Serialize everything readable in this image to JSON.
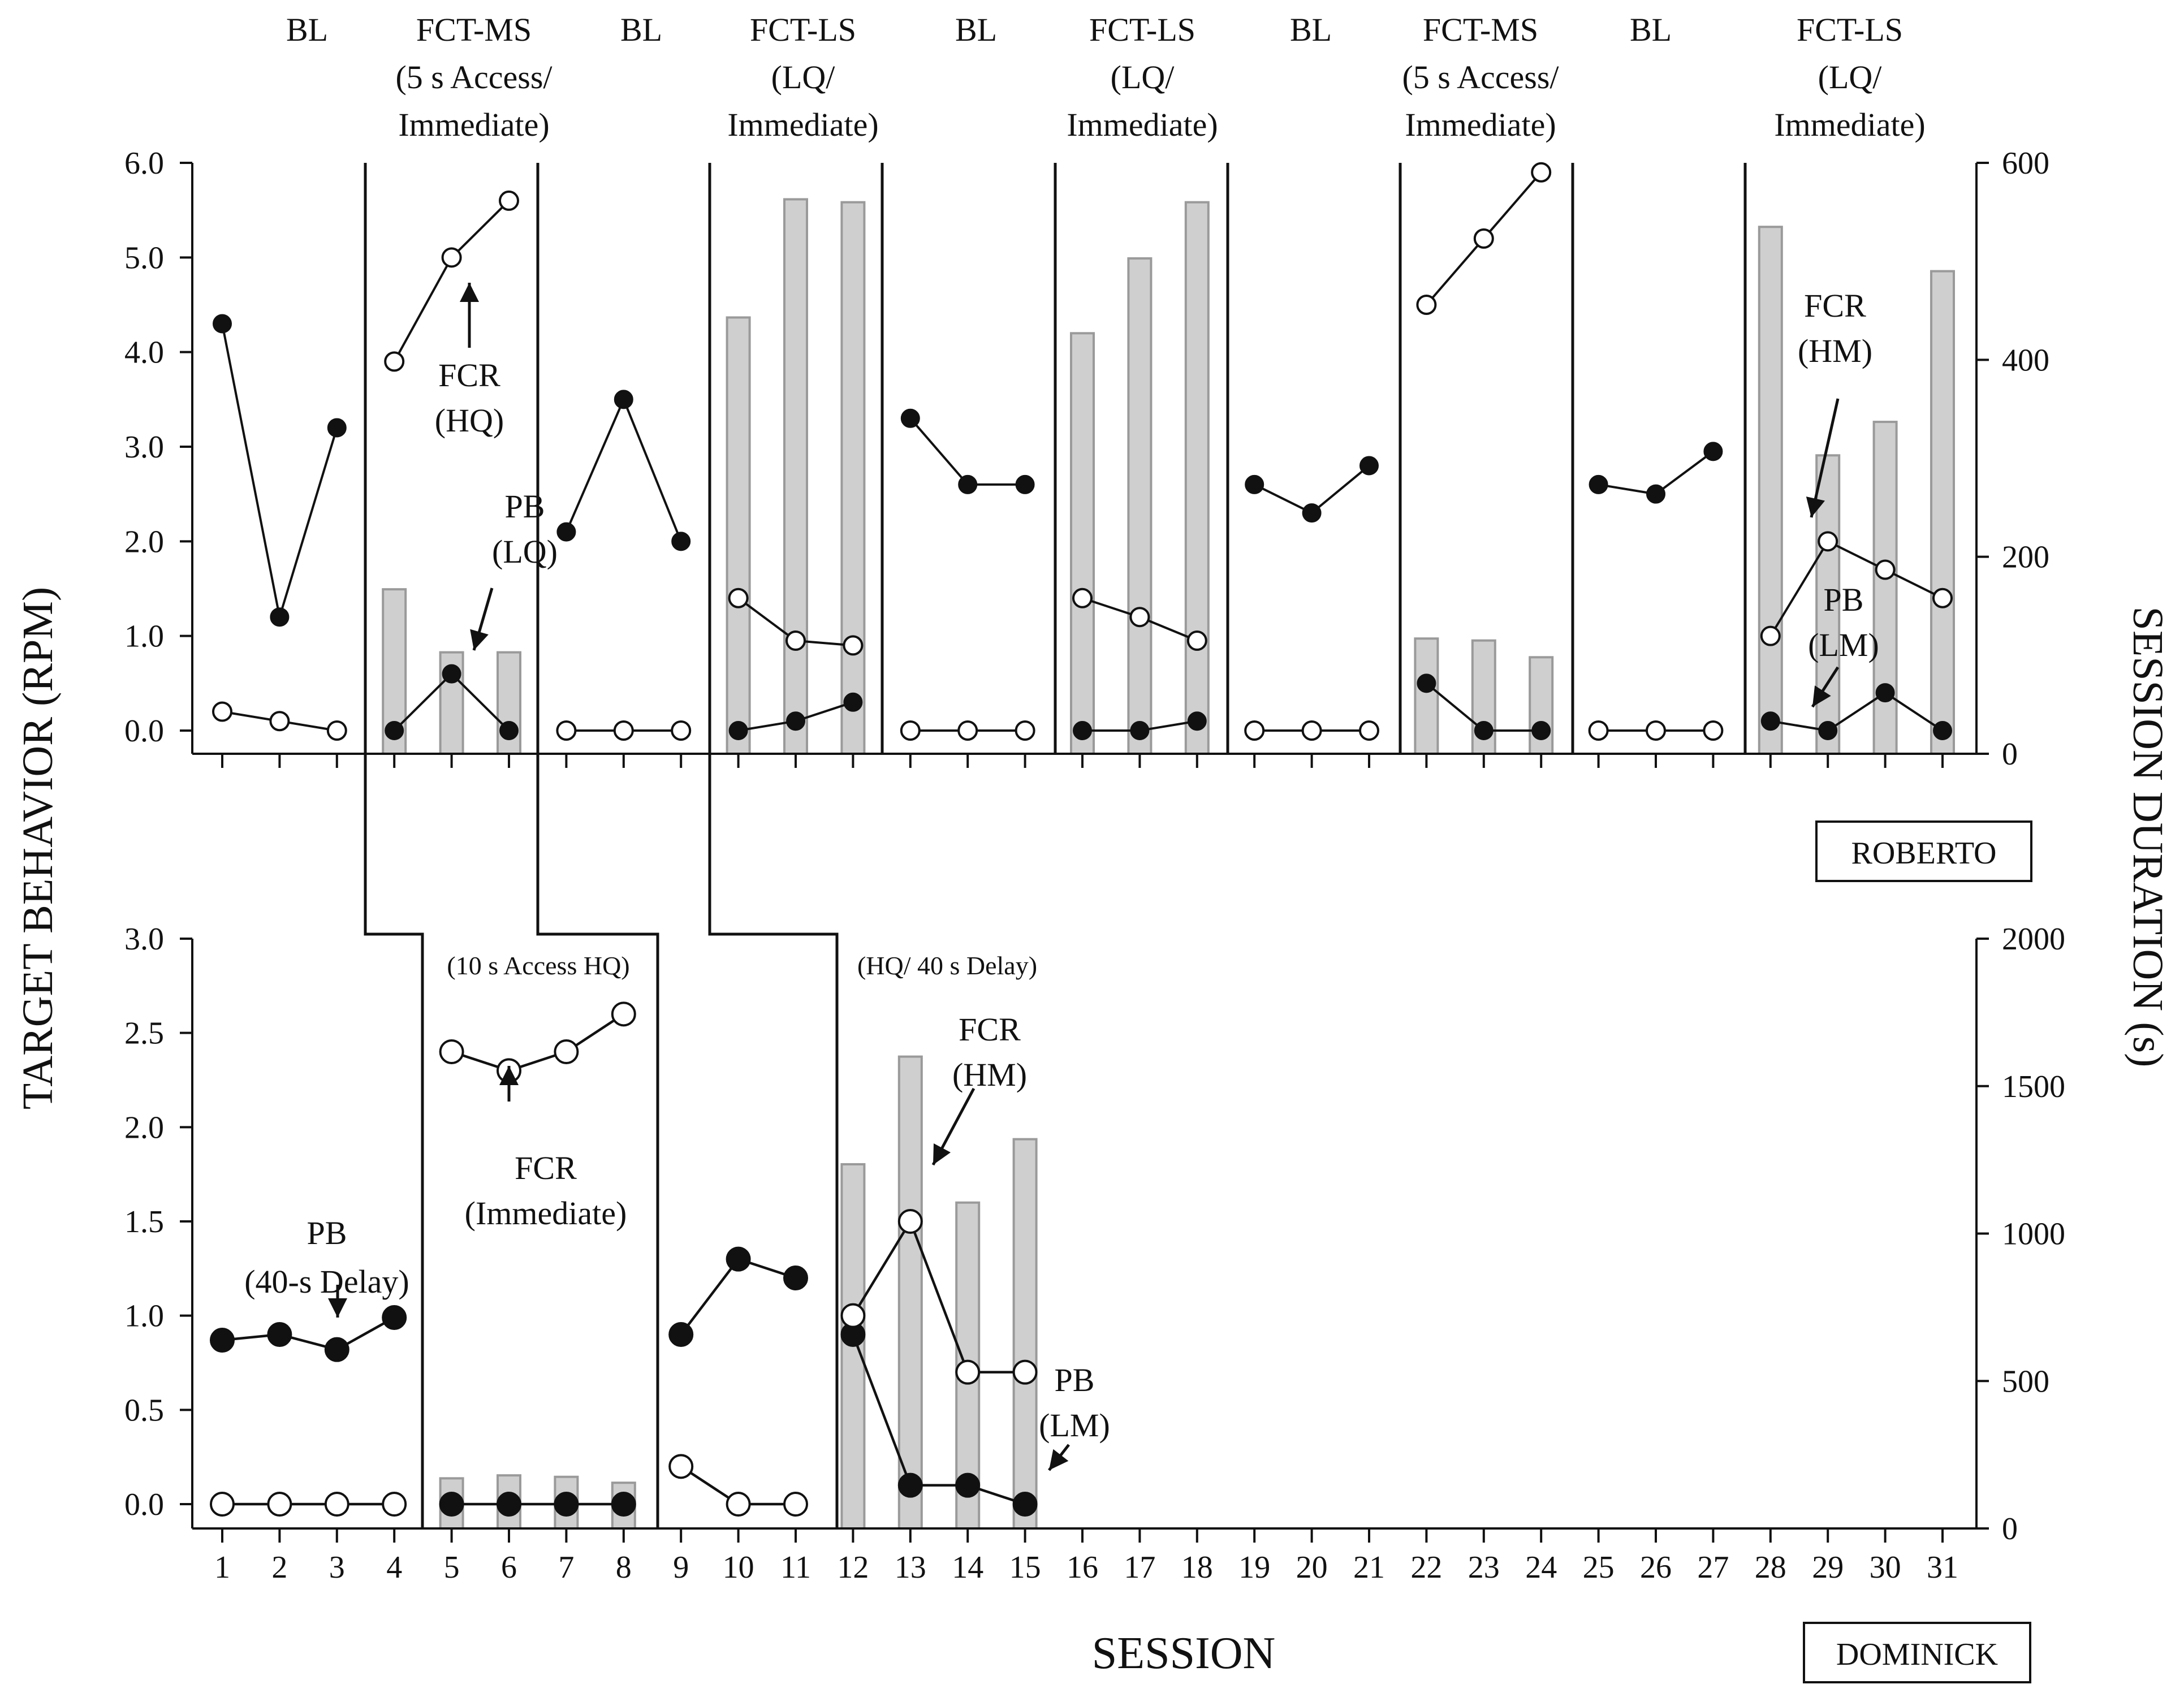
{
  "chart_data": [
    {
      "participant": "ROBERTO",
      "type": "line+bar",
      "ylabel_left": "TARGET BEHAVIOR (RPM)",
      "ylabel_right": "SESSION DURATION (s)",
      "xlabel": "SESSION",
      "ylim_left": [
        0,
        6
      ],
      "ylim_right": [
        0,
        600
      ],
      "y_ticks_left": [
        "0.0",
        "1.0",
        "2.0",
        "3.0",
        "4.0",
        "5.0",
        "6.0"
      ],
      "y_ticks_right": [
        "0",
        "200",
        "400",
        "600"
      ],
      "phases": [
        {
          "label": "BL",
          "start": 1,
          "end": 3
        },
        {
          "label": "FCT-MS\n(5 s Access/\nImmediate)",
          "start": 4,
          "end": 6
        },
        {
          "label": "BL",
          "start": 7,
          "end": 9
        },
        {
          "label": "FCT-LS\n(LQ/\nImmediate)",
          "start": 10,
          "end": 12
        },
        {
          "label": "BL",
          "start": 13,
          "end": 15
        },
        {
          "label": "FCT-LS\n(LQ/\nImmediate)",
          "start": 16,
          "end": 18
        },
        {
          "label": "BL",
          "start": 19,
          "end": 21
        },
        {
          "label": "FCT-MS\n(5 s Access/\nImmediate)",
          "start": 22,
          "end": 24
        },
        {
          "label": "BL",
          "start": 25,
          "end": 27
        },
        {
          "label": "FCT-LS\n(LQ/\nImmediate)",
          "start": 28,
          "end": 31
        }
      ],
      "series": [
        {
          "name": "Problem behavior (PB)",
          "marker": "filled",
          "segments": [
            [
              [
                1,
                4.3
              ],
              [
                2,
                1.2
              ],
              [
                3,
                3.2
              ]
            ],
            [
              [
                4,
                0.0
              ],
              [
                5,
                0.6
              ],
              [
                6,
                0.0
              ]
            ],
            [
              [
                7,
                2.1
              ],
              [
                8,
                3.5
              ],
              [
                9,
                2.0
              ]
            ],
            [
              [
                10,
                0.0
              ],
              [
                11,
                0.1
              ],
              [
                12,
                0.3
              ]
            ],
            [
              [
                13,
                3.3
              ],
              [
                14,
                2.6
              ],
              [
                15,
                2.6
              ]
            ],
            [
              [
                16,
                0.0
              ],
              [
                17,
                0.0
              ],
              [
                18,
                0.1
              ]
            ],
            [
              [
                19,
                2.6
              ],
              [
                20,
                2.3
              ],
              [
                21,
                2.8
              ]
            ],
            [
              [
                22,
                0.5
              ],
              [
                23,
                0.0
              ],
              [
                24,
                0.0
              ]
            ],
            [
              [
                25,
                2.6
              ],
              [
                26,
                2.5
              ],
              [
                27,
                2.95
              ]
            ],
            [
              [
                28,
                0.1
              ],
              [
                29,
                0.0
              ],
              [
                30,
                0.4
              ],
              [
                31,
                0.0
              ]
            ]
          ]
        },
        {
          "name": "FCR",
          "marker": "open",
          "segments": [
            [
              [
                1,
                0.2
              ],
              [
                2,
                0.1
              ],
              [
                3,
                0.0
              ]
            ],
            [
              [
                4,
                3.9
              ],
              [
                5,
                5.0
              ],
              [
                6,
                5.6
              ]
            ],
            [
              [
                7,
                0.0
              ],
              [
                8,
                0.0
              ],
              [
                9,
                0.0
              ]
            ],
            [
              [
                10,
                1.4
              ],
              [
                11,
                0.95
              ],
              [
                12,
                0.9
              ]
            ],
            [
              [
                13,
                0.0
              ],
              [
                14,
                0.0
              ],
              [
                15,
                0.0
              ]
            ],
            [
              [
                16,
                1.4
              ],
              [
                17,
                1.2
              ],
              [
                18,
                0.95
              ]
            ],
            [
              [
                19,
                0.0
              ],
              [
                20,
                0.0
              ],
              [
                21,
                0.0
              ]
            ],
            [
              [
                22,
                4.5
              ],
              [
                23,
                5.2
              ],
              [
                24,
                5.9
              ]
            ],
            [
              [
                25,
                0.0
              ],
              [
                26,
                0.0
              ],
              [
                27,
                0.0
              ]
            ],
            [
              [
                28,
                1.0
              ],
              [
                29,
                2.0
              ],
              [
                30,
                1.7
              ],
              [
                31,
                1.4
              ]
            ]
          ]
        }
      ],
      "session_duration_bars": [
        {
          "session": 4,
          "value": 167
        },
        {
          "session": 5,
          "value": 103
        },
        {
          "session": 6,
          "value": 103
        },
        {
          "session": 10,
          "value": 443
        },
        {
          "session": 11,
          "value": 563
        },
        {
          "session": 12,
          "value": 560
        },
        {
          "session": 16,
          "value": 427
        },
        {
          "session": 17,
          "value": 503
        },
        {
          "session": 18,
          "value": 560
        },
        {
          "session": 22,
          "value": 117
        },
        {
          "session": 23,
          "value": 115
        },
        {
          "session": 24,
          "value": 98
        },
        {
          "session": 28,
          "value": 535
        },
        {
          "session": 29,
          "value": 303
        },
        {
          "session": 30,
          "value": 337
        },
        {
          "session": 31,
          "value": 490
        }
      ],
      "annotations": [
        {
          "text": "FCR\n(HQ)"
        },
        {
          "text": "PB\n(LQ)"
        },
        {
          "text": "FCR\n(HM)"
        },
        {
          "text": "PB\n(LM)"
        }
      ],
      "label_box": "ROBERTO"
    },
    {
      "participant": "DOMINICK",
      "type": "line+bar",
      "ylabel_left": "TARGET BEHAVIOR (RPM)",
      "ylabel_right": "SESSION DURATION (s)",
      "xlabel": "SESSION",
      "ylim_left": [
        0,
        3
      ],
      "ylim_right": [
        0,
        2000
      ],
      "y_ticks_left": [
        "0.0",
        "0.5",
        "1.0",
        "1.5",
        "2.0",
        "2.5",
        "3.0"
      ],
      "y_ticks_right": [
        "0",
        "500",
        "1000",
        "1500",
        "2000"
      ],
      "x_ticks": [
        "1",
        "2",
        "3",
        "4",
        "5",
        "6",
        "7",
        "8",
        "9",
        "10",
        "11",
        "12",
        "13",
        "14",
        "15",
        "16",
        "17",
        "18",
        "19",
        "20",
        "21",
        "22",
        "23",
        "24",
        "25",
        "26",
        "27",
        "28",
        "29",
        "30",
        "31"
      ],
      "phase_labels": [
        "(10 s Access HQ)",
        "(HQ/ 40 s Delay)"
      ],
      "series": [
        {
          "name": "Problem behavior (PB)",
          "marker": "filled",
          "segments": [
            [
              [
                1,
                0.87
              ],
              [
                2,
                0.9
              ],
              [
                3,
                0.82
              ],
              [
                4,
                0.99
              ]
            ],
            [
              [
                5,
                0.0
              ],
              [
                6,
                0.0
              ],
              [
                7,
                0.0
              ],
              [
                8,
                0.0
              ]
            ],
            [
              [
                9,
                0.9
              ],
              [
                10,
                1.3
              ],
              [
                11,
                1.2
              ]
            ],
            [
              [
                12,
                0.9
              ],
              [
                13,
                0.1
              ],
              [
                14,
                0.1
              ],
              [
                15,
                0.0
              ]
            ]
          ]
        },
        {
          "name": "FCR",
          "marker": "open",
          "segments": [
            [
              [
                1,
                0.0
              ],
              [
                2,
                0.0
              ],
              [
                3,
                0.0
              ],
              [
                4,
                0.0
              ]
            ],
            [
              [
                5,
                2.4
              ],
              [
                6,
                2.3
              ],
              [
                7,
                2.4
              ],
              [
                8,
                2.6
              ]
            ],
            [
              [
                9,
                0.2
              ],
              [
                10,
                0.0
              ],
              [
                11,
                0.0
              ]
            ],
            [
              [
                12,
                1.0
              ],
              [
                13,
                1.5
              ],
              [
                14,
                0.7
              ],
              [
                15,
                0.7
              ]
            ]
          ]
        }
      ],
      "session_duration_bars": [
        {
          "session": 5,
          "value": 170
        },
        {
          "session": 6,
          "value": 180
        },
        {
          "session": 7,
          "value": 175
        },
        {
          "session": 8,
          "value": 155
        },
        {
          "session": 12,
          "value": 1235
        },
        {
          "session": 13,
          "value": 1600
        },
        {
          "session": 14,
          "value": 1105
        },
        {
          "session": 15,
          "value": 1320
        }
      ],
      "annotations": [
        {
          "text": "PB\n(40-s Delay)"
        },
        {
          "text": "FCR\n(Immediate)"
        },
        {
          "text": "FCR\n(HM)"
        },
        {
          "text": "PB\n(LM)"
        }
      ],
      "label_box": "DOMINICK"
    }
  ]
}
